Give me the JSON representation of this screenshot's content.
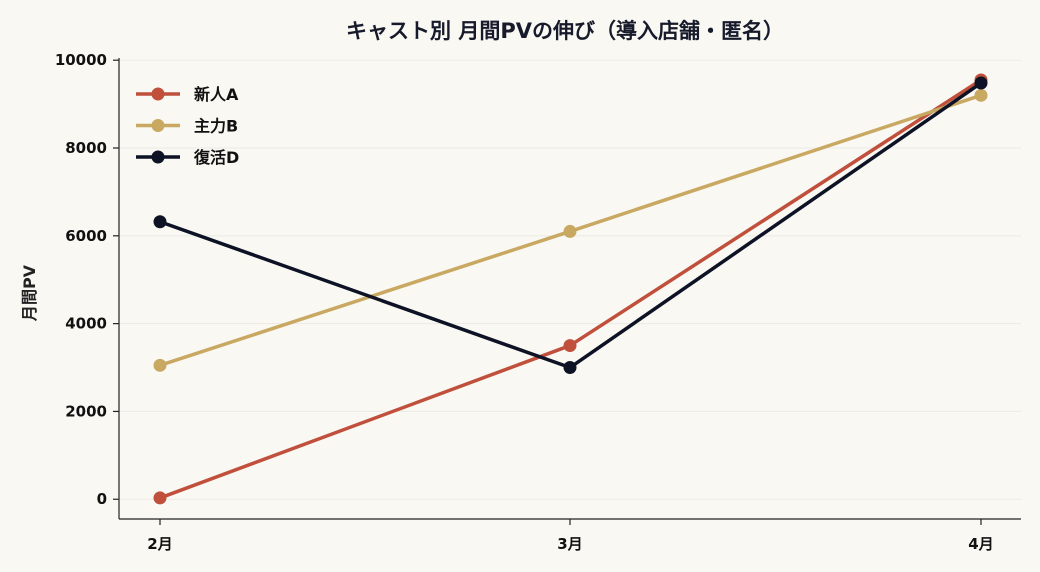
{
  "chart_data": {
    "type": "line",
    "title": "キャスト別 月間PVの伸び（導入店舗・匿名）",
    "xlabel": "",
    "ylabel": "月間PV",
    "categories": [
      "2月",
      "3月",
      "4月"
    ],
    "ylim": [
      -450,
      10050
    ],
    "yticks": [
      0,
      2000,
      4000,
      6000,
      8000,
      10000
    ],
    "grid": true,
    "legend_position": "upper-left",
    "series": [
      {
        "name": "新人A",
        "color": "#c0503c",
        "values": [
          30,
          3500,
          9550
        ]
      },
      {
        "name": "主力B",
        "color": "#c9a862",
        "values": [
          3050,
          6100,
          9200
        ]
      },
      {
        "name": "復活D",
        "color": "#0d1225",
        "values": [
          6320,
          3000,
          9480
        ]
      }
    ]
  }
}
